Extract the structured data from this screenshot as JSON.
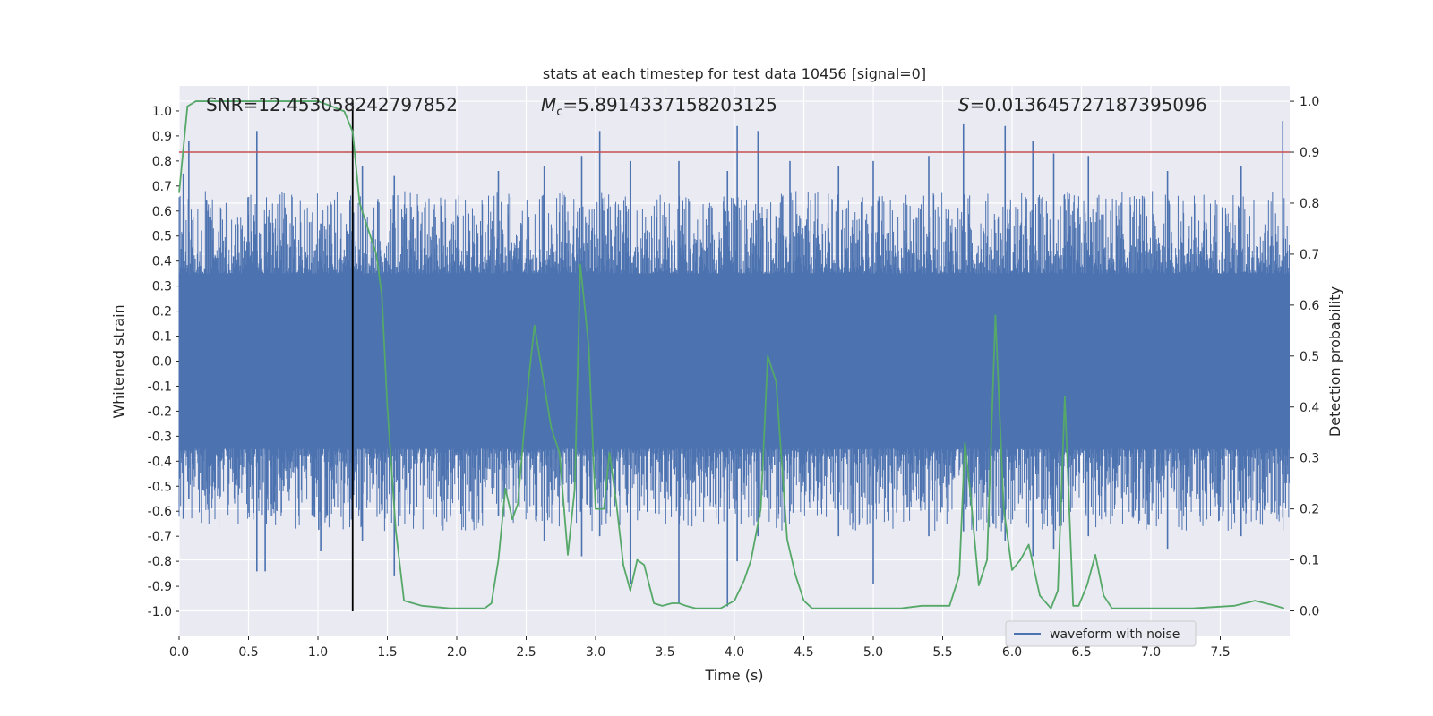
{
  "chart_data": {
    "type": "line",
    "title": "stats at each timestep for test data 10456 [signal=0]",
    "xlabel": "Time (s)",
    "ylabel": "Whitened strain",
    "y2label": "Detection probability",
    "xlim": [
      0.0,
      8.0
    ],
    "ylim": [
      -1.1,
      1.1
    ],
    "y2lim": [
      -0.05,
      1.03
    ],
    "xticks": [
      "0.0",
      "0.5",
      "1.0",
      "1.5",
      "2.0",
      "2.5",
      "3.0",
      "3.5",
      "4.0",
      "4.5",
      "5.0",
      "5.5",
      "6.0",
      "6.5",
      "7.0",
      "7.5"
    ],
    "xtick_values": [
      0.0,
      0.5,
      1.0,
      1.5,
      2.0,
      2.5,
      3.0,
      3.5,
      4.0,
      4.5,
      5.0,
      5.5,
      6.0,
      6.5,
      7.0,
      7.5
    ],
    "yticks": [
      "1.0",
      "0.9",
      "0.8",
      "0.7",
      "0.6",
      "0.5",
      "0.4",
      "0.3",
      "0.2",
      "0.1",
      "0.0",
      "-0.1",
      "-0.2",
      "-0.3",
      "-0.4",
      "-0.5",
      "-0.6",
      "-0.7",
      "-0.8",
      "-0.9",
      "-1.0"
    ],
    "ytick_values": [
      1.0,
      0.9,
      0.8,
      0.7,
      0.6,
      0.5,
      0.4,
      0.3,
      0.2,
      0.1,
      0.0,
      -0.1,
      -0.2,
      -0.3,
      -0.4,
      -0.5,
      -0.6,
      -0.7,
      -0.8,
      -0.9,
      -1.0
    ],
    "y2ticks": [
      "1.0",
      "0.9",
      "0.8",
      "0.7",
      "0.6",
      "0.5",
      "0.4",
      "0.3",
      "0.2",
      "0.1",
      "0.0"
    ],
    "y2tick_values": [
      1.0,
      0.9,
      0.8,
      0.7,
      0.6,
      0.5,
      0.4,
      0.3,
      0.2,
      0.1,
      0.0
    ],
    "annotations": {
      "snr": "SNR=12.453058242797852",
      "mc_symbol": "M",
      "mc_subscript": "c",
      "mc_value": "=5.8914337158203125",
      "s_symbol": "S",
      "s_value": "=0.013645727187395096"
    },
    "threshold": {
      "value": 0.9,
      "axis": "y2",
      "color": "#c44e52"
    },
    "marker_time": 1.25,
    "series": [
      {
        "name": "waveform with noise",
        "axis": "y",
        "color": "#4c72b0",
        "render": "dense-noise",
        "core_amplitude": 0.35,
        "typical_peak": 0.6,
        "spikes": [
          [
            0.03,
            0.75,
            -0.63
          ],
          [
            0.07,
            0.88,
            -0.55
          ],
          [
            0.56,
            0.92,
            -0.84
          ],
          [
            0.62,
            0.55,
            -0.84
          ],
          [
            1.02,
            0.55,
            -0.76
          ],
          [
            1.32,
            0.78,
            -0.72
          ],
          [
            1.55,
            0.74,
            -0.86
          ],
          [
            2.3,
            0.76,
            -0.62
          ],
          [
            2.63,
            0.78,
            -0.72
          ],
          [
            2.9,
            0.82,
            -0.78
          ],
          [
            3.03,
            0.92,
            -0.7
          ],
          [
            3.25,
            0.8,
            -0.89
          ],
          [
            3.6,
            0.8,
            -0.97
          ],
          [
            3.95,
            0.76,
            -0.98
          ],
          [
            4.02,
            0.94,
            -0.8
          ],
          [
            4.17,
            0.92,
            -0.7
          ],
          [
            4.4,
            0.8,
            -0.6
          ],
          [
            4.75,
            0.78,
            -0.7
          ],
          [
            5.0,
            0.8,
            -0.89
          ],
          [
            5.4,
            0.82,
            -0.7
          ],
          [
            5.65,
            0.95,
            -0.68
          ],
          [
            5.95,
            0.94,
            -0.72
          ],
          [
            6.15,
            0.88,
            -0.78
          ],
          [
            6.3,
            0.83,
            -0.75
          ],
          [
            6.55,
            0.82,
            -0.7
          ],
          [
            7.12,
            0.76,
            -0.75
          ],
          [
            7.65,
            0.78,
            -0.7
          ],
          [
            7.95,
            0.96,
            -0.58
          ]
        ]
      },
      {
        "name": "detection probability",
        "axis": "y2",
        "color": "#55a868",
        "x": [
          0.0,
          0.06,
          0.12,
          0.2,
          0.5,
          0.8,
          1.0,
          1.1,
          1.19,
          1.25,
          1.3,
          1.36,
          1.42,
          1.46,
          1.5,
          1.56,
          1.62,
          1.75,
          1.95,
          2.1,
          2.2,
          2.25,
          2.3,
          2.35,
          2.4,
          2.44,
          2.48,
          2.52,
          2.56,
          2.62,
          2.68,
          2.74,
          2.8,
          2.85,
          2.89,
          2.95,
          3.0,
          3.06,
          3.1,
          3.15,
          3.2,
          3.25,
          3.3,
          3.35,
          3.42,
          3.48,
          3.55,
          3.6,
          3.65,
          3.72,
          3.8,
          3.9,
          4.0,
          4.07,
          4.12,
          4.19,
          4.24,
          4.3,
          4.38,
          4.44,
          4.5,
          4.56,
          4.6,
          4.68,
          4.8,
          5.0,
          5.2,
          5.35,
          5.45,
          5.55,
          5.62,
          5.66,
          5.7,
          5.76,
          5.82,
          5.88,
          5.94,
          6.0,
          6.06,
          6.12,
          6.2,
          6.28,
          6.33,
          6.38,
          6.44,
          6.48,
          6.54,
          6.6,
          6.66,
          6.72,
          6.8,
          6.9,
          7.1,
          7.3,
          7.6,
          7.75,
          7.9,
          7.96
        ],
        "y": [
          0.82,
          0.99,
          1.0,
          1.0,
          1.0,
          1.0,
          1.0,
          0.99,
          0.98,
          0.94,
          0.8,
          0.75,
          0.7,
          0.62,
          0.4,
          0.16,
          0.02,
          0.01,
          0.005,
          0.005,
          0.005,
          0.015,
          0.1,
          0.24,
          0.18,
          0.21,
          0.34,
          0.46,
          0.56,
          0.46,
          0.36,
          0.31,
          0.11,
          0.24,
          0.68,
          0.52,
          0.2,
          0.2,
          0.31,
          0.21,
          0.09,
          0.04,
          0.1,
          0.09,
          0.015,
          0.01,
          0.015,
          0.015,
          0.01,
          0.005,
          0.005,
          0.005,
          0.02,
          0.06,
          0.1,
          0.2,
          0.5,
          0.45,
          0.14,
          0.07,
          0.02,
          0.005,
          0.005,
          0.005,
          0.005,
          0.005,
          0.005,
          0.01,
          0.01,
          0.01,
          0.07,
          0.33,
          0.23,
          0.05,
          0.1,
          0.58,
          0.2,
          0.08,
          0.1,
          0.13,
          0.03,
          0.005,
          0.04,
          0.42,
          0.01,
          0.01,
          0.05,
          0.11,
          0.03,
          0.005,
          0.005,
          0.005,
          0.005,
          0.005,
          0.01,
          0.02,
          0.01,
          0.005
        ]
      }
    ],
    "legend": {
      "label": "waveform with noise",
      "placement": "lower-right"
    }
  }
}
